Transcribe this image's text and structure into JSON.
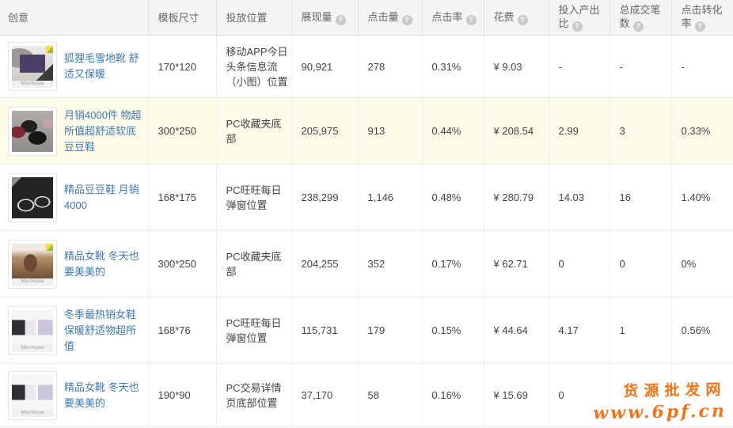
{
  "icons": {
    "help": "?"
  },
  "colors": {
    "link_blue": "#3e79b4",
    "highlight_row_bg": "#fdfce8",
    "header_bg": "#f4f4f4",
    "watermark_orange": "#f2741b"
  },
  "table": {
    "columns": [
      {
        "label": "创意",
        "has_help": false
      },
      {
        "label": "模板尺寸",
        "has_help": false
      },
      {
        "label": "投放位置",
        "has_help": false
      },
      {
        "label": "展现量",
        "has_help": true
      },
      {
        "label": "点击量",
        "has_help": true
      },
      {
        "label": "点击率",
        "has_help": true
      },
      {
        "label": "花费",
        "has_help": true
      },
      {
        "label": "投入产出比",
        "has_help": true
      },
      {
        "label": "总成交笔数",
        "has_help": true
      },
      {
        "label": "点击转化率",
        "has_help": true
      }
    ],
    "rows": [
      {
        "title": "狐狸毛雪地靴 舒适又保暖",
        "caption": "Mia House",
        "size": "170*120",
        "placement": "移动APP今日头条信息流（小图）位置",
        "impressions": "90,921",
        "clicks": "278",
        "ctr": "0.31%",
        "cost": "¥ 9.03",
        "roi": "-",
        "deals": "-",
        "conv": "-",
        "highlighted": false
      },
      {
        "title": "月销4000件 物超所值超舒适软底豆豆鞋",
        "caption": "",
        "size": "300*250",
        "placement": "PC收藏夹底部",
        "impressions": "205,975",
        "clicks": "913",
        "ctr": "0.44%",
        "cost": "¥ 208.54",
        "roi": "2.99",
        "deals": "3",
        "conv": "0.33%",
        "highlighted": true
      },
      {
        "title": "精品豆豆鞋 月销4000",
        "caption": "",
        "size": "168*175",
        "placement": "PC旺旺每日弹窗位置",
        "impressions": "238,299",
        "clicks": "1,146",
        "ctr": "0.48%",
        "cost": "¥ 280.79",
        "roi": "14.03",
        "deals": "16",
        "conv": "1.40%",
        "highlighted": false
      },
      {
        "title": "精品女靴 冬天也要美美的",
        "caption": "Mia House",
        "size": "300*250",
        "placement": "PC收藏夹底部",
        "impressions": "204,255",
        "clicks": "352",
        "ctr": "0.17%",
        "cost": "¥ 62.71",
        "roi": "0",
        "deals": "0",
        "conv": "0%",
        "highlighted": false
      },
      {
        "title": "冬季最热销女鞋 保暖舒适物超所值",
        "caption": "Mia House",
        "size": "168*76",
        "placement": "PC旺旺每日弹窗位置",
        "impressions": "115,731",
        "clicks": "179",
        "ctr": "0.15%",
        "cost": "¥ 44.64",
        "roi": "4.17",
        "deals": "1",
        "conv": "0.56%",
        "highlighted": false
      },
      {
        "title": "精品女靴 冬天也要美美的",
        "caption": "Mia House",
        "size": "190*90",
        "placement": "PC交易详情页底部位置",
        "impressions": "37,170",
        "clicks": "58",
        "ctr": "0.16%",
        "cost": "¥ 15.69",
        "roi": "0",
        "deals": "",
        "conv": "",
        "highlighted": false
      }
    ]
  },
  "watermark": {
    "line1": "货源批发网",
    "line2": "www.6pf.cn"
  }
}
